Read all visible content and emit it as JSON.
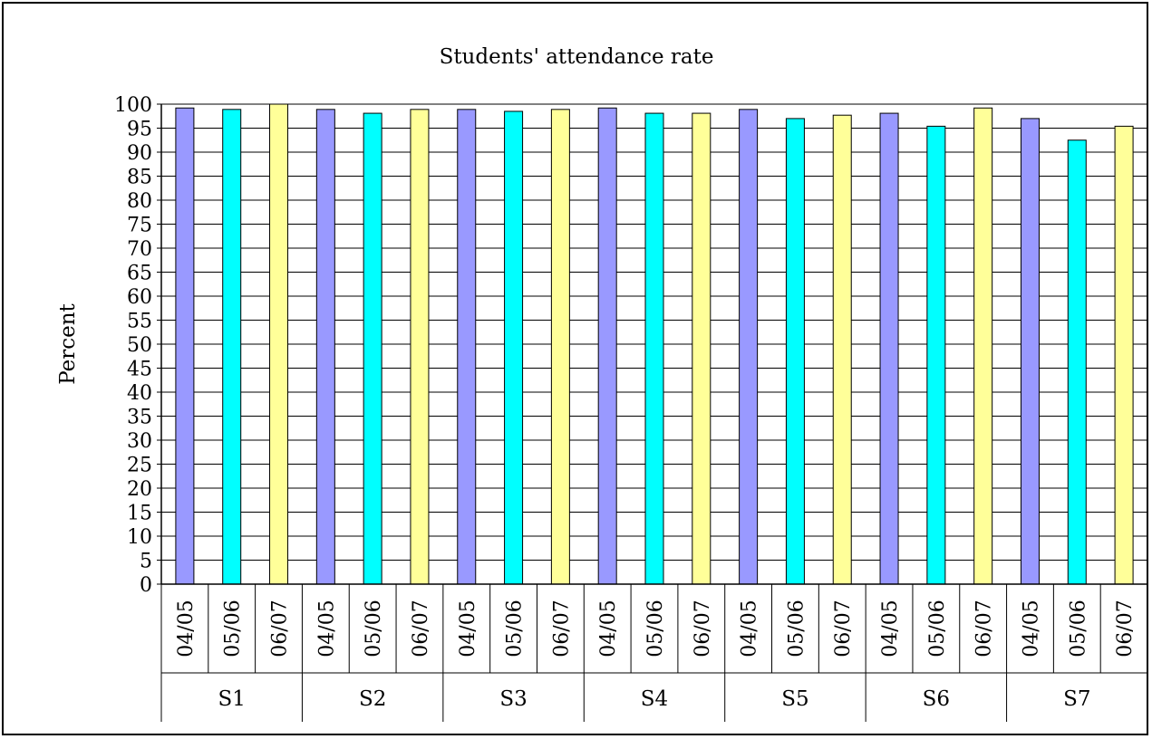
{
  "chart_data": {
    "type": "bar",
    "title": "Students' attendance rate",
    "ylabel": "Percent",
    "xlabel": "",
    "ylim": [
      0,
      100
    ],
    "y_ticks": [
      0,
      5,
      10,
      15,
      20,
      25,
      30,
      35,
      40,
      45,
      50,
      55,
      60,
      65,
      70,
      75,
      80,
      85,
      90,
      95,
      100
    ],
    "grid": true,
    "legend": "none",
    "groups": [
      "S1",
      "S2",
      "S3",
      "S4",
      "S5",
      "S6",
      "S7"
    ],
    "years": [
      "04/05",
      "05/06",
      "06/07"
    ],
    "series": [
      {
        "key": "04/05",
        "color": "#9999ff",
        "values": [
          99.2,
          98.9,
          98.9,
          99.2,
          98.9,
          98.1,
          97.0
        ]
      },
      {
        "key": "05/06",
        "color": "#00ffff",
        "values": [
          98.9,
          98.1,
          98.5,
          98.1,
          97.0,
          95.4,
          92.5
        ]
      },
      {
        "key": "06/07",
        "color": "#ffff99",
        "values": [
          100.0,
          98.9,
          98.9,
          98.1,
          97.7,
          99.2,
          95.4
        ]
      }
    ]
  }
}
